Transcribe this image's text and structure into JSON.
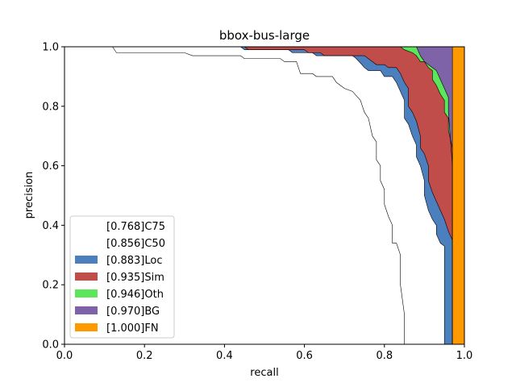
{
  "chart_data": {
    "type": "area",
    "title": "bbox-bus-large",
    "xlabel": "recall",
    "ylabel": "precision",
    "xlim": [
      0,
      1
    ],
    "ylim": [
      0,
      1
    ],
    "xticks": [
      "0.0",
      "0.2",
      "0.4",
      "0.6",
      "0.8",
      "1.0"
    ],
    "yticks": [
      "0.0",
      "0.2",
      "0.4",
      "0.6",
      "0.8",
      "1.0"
    ],
    "legend_position": "lower-left",
    "series": [
      {
        "name": "[0.768]C75",
        "color": "#ffffff",
        "points": [
          [
            0,
            1
          ],
          [
            0.12,
            1
          ],
          [
            0.13,
            0.98
          ],
          [
            0.3,
            0.98
          ],
          [
            0.32,
            0.97
          ],
          [
            0.44,
            0.97
          ],
          [
            0.45,
            0.96
          ],
          [
            0.54,
            0.96
          ],
          [
            0.55,
            0.95
          ],
          [
            0.58,
            0.95
          ],
          [
            0.59,
            0.91
          ],
          [
            0.62,
            0.91
          ],
          [
            0.63,
            0.9
          ],
          [
            0.67,
            0.9
          ],
          [
            0.68,
            0.88
          ],
          [
            0.7,
            0.86
          ],
          [
            0.72,
            0.85
          ],
          [
            0.74,
            0.82
          ],
          [
            0.75,
            0.78
          ],
          [
            0.76,
            0.76
          ],
          [
            0.77,
            0.7
          ],
          [
            0.78,
            0.68
          ],
          [
            0.78,
            0.62
          ],
          [
            0.79,
            0.6
          ],
          [
            0.79,
            0.55
          ],
          [
            0.8,
            0.52
          ],
          [
            0.8,
            0.47
          ],
          [
            0.81,
            0.43
          ],
          [
            0.82,
            0.4
          ],
          [
            0.82,
            0.34
          ],
          [
            0.83,
            0.34
          ],
          [
            0.84,
            0.3
          ],
          [
            0.84,
            0.2
          ],
          [
            0.85,
            0.1
          ],
          [
            0.85,
            0
          ]
        ]
      },
      {
        "name": "[0.856]C50",
        "color": "#ffffff",
        "points": [
          [
            0,
            1
          ],
          [
            0.44,
            1
          ],
          [
            0.45,
            0.99
          ],
          [
            0.56,
            0.99
          ],
          [
            0.57,
            0.98
          ],
          [
            0.62,
            0.98
          ],
          [
            0.63,
            0.97
          ],
          [
            0.72,
            0.97
          ],
          [
            0.73,
            0.96
          ],
          [
            0.75,
            0.93
          ],
          [
            0.76,
            0.92
          ],
          [
            0.79,
            0.92
          ],
          [
            0.8,
            0.9
          ],
          [
            0.82,
            0.9
          ],
          [
            0.83,
            0.88
          ],
          [
            0.84,
            0.85
          ],
          [
            0.85,
            0.82
          ],
          [
            0.85,
            0.76
          ],
          [
            0.86,
            0.74
          ],
          [
            0.87,
            0.7
          ],
          [
            0.88,
            0.67
          ],
          [
            0.88,
            0.63
          ],
          [
            0.89,
            0.6
          ],
          [
            0.9,
            0.55
          ],
          [
            0.9,
            0.5
          ],
          [
            0.91,
            0.45
          ],
          [
            0.92,
            0.42
          ],
          [
            0.93,
            0.4
          ],
          [
            0.93,
            0.37
          ],
          [
            0.94,
            0.34
          ],
          [
            0.95,
            0.33
          ],
          [
            0.95,
            0.1
          ],
          [
            0.95,
            0
          ]
        ]
      },
      {
        "name": "[0.883]Loc",
        "color": "#4c7fbd",
        "points": [
          [
            0,
            1
          ],
          [
            0.45,
            1
          ],
          [
            0.46,
            0.99
          ],
          [
            0.6,
            0.99
          ],
          [
            0.61,
            0.98
          ],
          [
            0.64,
            0.98
          ],
          [
            0.65,
            0.97
          ],
          [
            0.75,
            0.97
          ],
          [
            0.76,
            0.96
          ],
          [
            0.77,
            0.95
          ],
          [
            0.78,
            0.94
          ],
          [
            0.8,
            0.94
          ],
          [
            0.81,
            0.93
          ],
          [
            0.83,
            0.93
          ],
          [
            0.84,
            0.91
          ],
          [
            0.85,
            0.88
          ],
          [
            0.86,
            0.86
          ],
          [
            0.86,
            0.8
          ],
          [
            0.87,
            0.78
          ],
          [
            0.88,
            0.75
          ],
          [
            0.89,
            0.7
          ],
          [
            0.89,
            0.66
          ],
          [
            0.9,
            0.64
          ],
          [
            0.91,
            0.6
          ],
          [
            0.91,
            0.55
          ],
          [
            0.92,
            0.51
          ],
          [
            0.93,
            0.48
          ],
          [
            0.94,
            0.45
          ],
          [
            0.95,
            0.42
          ],
          [
            0.96,
            0.38
          ],
          [
            0.97,
            0.35
          ],
          [
            0.97,
            0.22
          ],
          [
            0.97,
            0
          ]
        ]
      },
      {
        "name": "[0.935]Sim",
        "color": "#c14d4a",
        "points": [
          [
            0,
            1
          ],
          [
            0.5,
            1
          ],
          [
            0.84,
            1
          ],
          [
            0.85,
            0.99
          ],
          [
            0.87,
            0.98
          ],
          [
            0.88,
            0.97
          ],
          [
            0.89,
            0.95
          ],
          [
            0.9,
            0.95
          ],
          [
            0.91,
            0.93
          ],
          [
            0.92,
            0.92
          ],
          [
            0.92,
            0.89
          ],
          [
            0.93,
            0.87
          ],
          [
            0.94,
            0.84
          ],
          [
            0.95,
            0.82
          ],
          [
            0.95,
            0.78
          ],
          [
            0.96,
            0.76
          ],
          [
            0.96,
            0.72
          ],
          [
            0.97,
            0.66
          ],
          [
            0.97,
            0.5
          ],
          [
            0.97,
            0
          ]
        ]
      },
      {
        "name": "[0.946]Oth",
        "color": "#5ce65c",
        "points": [
          [
            0,
            1
          ],
          [
            0.85,
            1
          ],
          [
            0.88,
            1
          ],
          [
            0.89,
            0.97
          ],
          [
            0.9,
            0.95
          ],
          [
            0.92,
            0.93
          ],
          [
            0.93,
            0.92
          ],
          [
            0.94,
            0.89
          ],
          [
            0.95,
            0.86
          ],
          [
            0.96,
            0.83
          ],
          [
            0.96,
            0.78
          ],
          [
            0.97,
            0.6
          ],
          [
            0.97,
            0
          ]
        ]
      },
      {
        "name": "[0.970]BG",
        "color": "#7f63a8",
        "points": [
          [
            0,
            1
          ],
          [
            0.97,
            1
          ],
          [
            0.97,
            0
          ]
        ]
      },
      {
        "name": "[1.000]FN",
        "color": "#ff9900",
        "points": [
          [
            0,
            1
          ],
          [
            1,
            1
          ],
          [
            1,
            0
          ]
        ]
      }
    ]
  }
}
